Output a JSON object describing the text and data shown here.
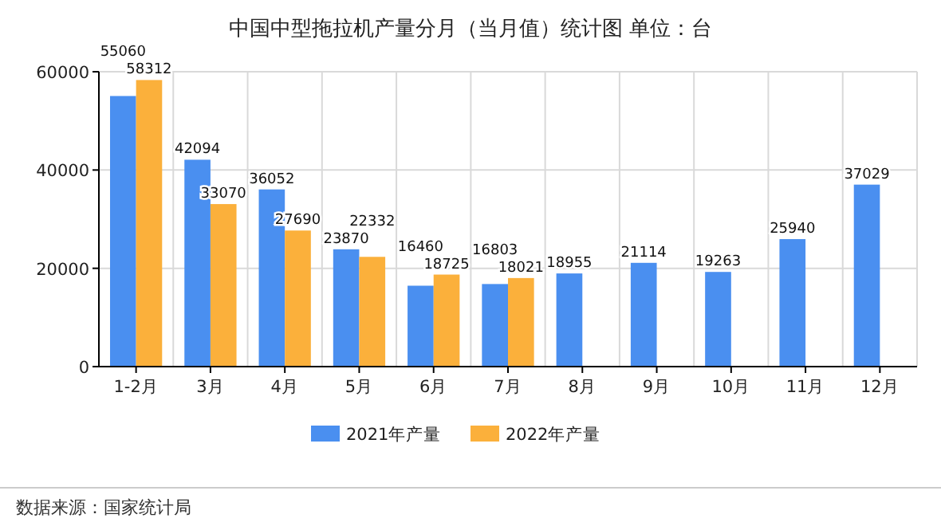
{
  "chart_data": {
    "type": "bar",
    "title": "中国中型拖拉机产量分月（当月值）统计图 单位：台",
    "categories": [
      "1-2月",
      "3月",
      "4月",
      "5月",
      "6月",
      "7月",
      "8月",
      "9月",
      "10月",
      "11月",
      "12月"
    ],
    "series": [
      {
        "name": "2021年产量",
        "color": "#4a8ff0",
        "values": [
          55060,
          42094,
          36052,
          23870,
          16460,
          16803,
          18955,
          21114,
          19263,
          25940,
          37029
        ]
      },
      {
        "name": "2022年产量",
        "color": "#fbb03b",
        "values": [
          58312,
          33070,
          27690,
          22332,
          18725,
          18021,
          null,
          null,
          null,
          null,
          null
        ]
      }
    ],
    "ylim": [
      0,
      60000
    ],
    "yticks": [
      0,
      20000,
      40000,
      60000
    ],
    "grid": true,
    "legend": "bottom",
    "data_labels": true,
    "annotations": [
      "数据来源：国家统计局"
    ]
  }
}
